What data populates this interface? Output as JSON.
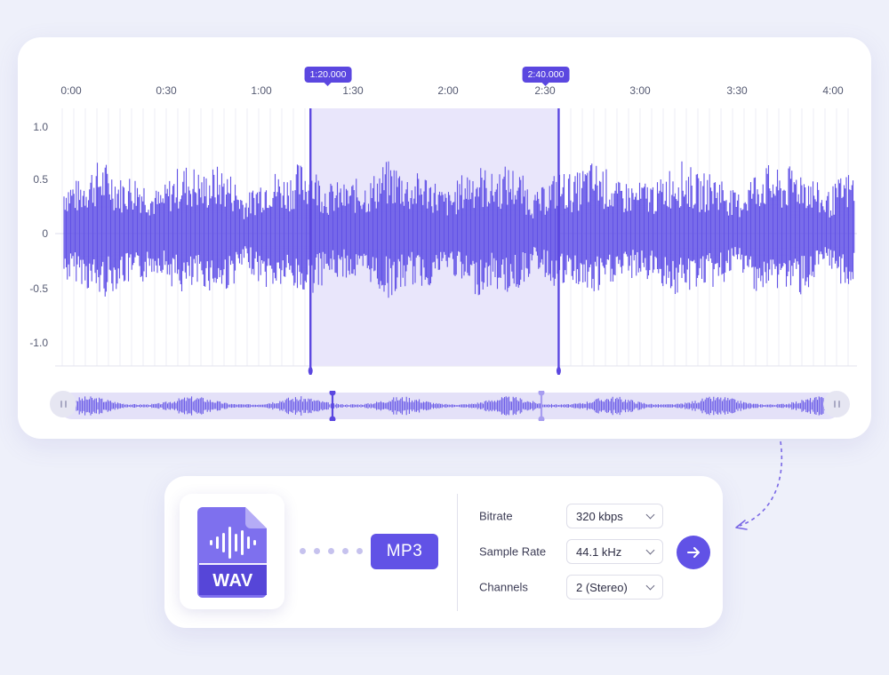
{
  "timeline": {
    "ticks": [
      "0:00",
      "0:30",
      "1:00",
      "1:30",
      "2:00",
      "2:30",
      "3:00",
      "3:30",
      "4:00"
    ]
  },
  "amplitude_axis": {
    "ticks": [
      "1.0",
      "0.5",
      "0",
      "-0.5",
      "-1.0"
    ]
  },
  "selection": {
    "start_label": "1:20.000",
    "end_label": "2:40.000",
    "start_seconds": 80,
    "end_seconds": 160
  },
  "colors": {
    "accent": "#5b47e0",
    "waveform": "#6151e6",
    "selection_fill": "#e9e6fb",
    "overview_track": "#e4e1f8"
  },
  "conversion": {
    "source_format": "WAV",
    "target_format": "MP3",
    "source_icon": "audio-file-icon",
    "settings": [
      {
        "label": "Bitrate",
        "value": "320 kbps"
      },
      {
        "label": "Sample Rate",
        "value": "44.1 kHz"
      },
      {
        "label": "Channels",
        "value": "2 (Stereo)"
      }
    ],
    "action_icon": "arrow-right-icon"
  }
}
